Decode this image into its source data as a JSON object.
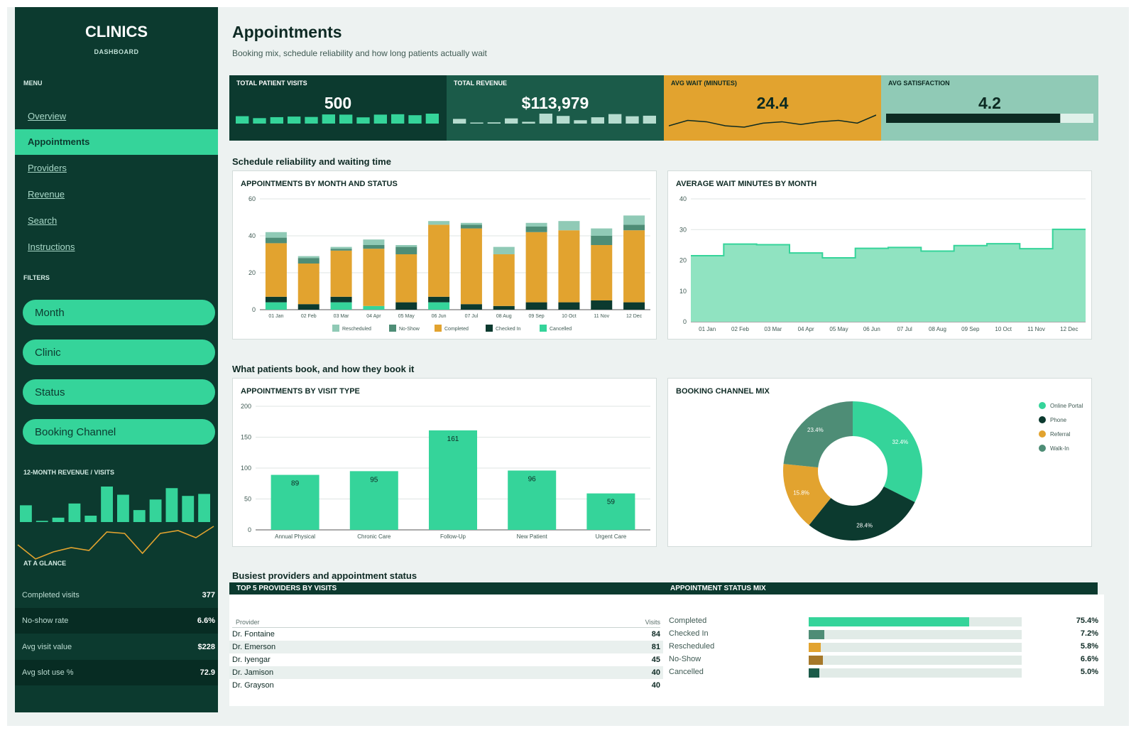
{
  "sidebar": {
    "brand": "CLINICS",
    "brand_sub": "DASHBOARD",
    "menu_label": "MENU",
    "nav": [
      "Overview",
      "Appointments",
      "Providers",
      "Revenue",
      "Search",
      "Instructions"
    ],
    "active_nav": "Appointments",
    "filters_label": "FILTERS",
    "filters": [
      "Month",
      "Clinic",
      "Status",
      "Booking Channel"
    ],
    "trend_label": "12-MONTH REVENUE  /  VISITS",
    "revenue_trend": [
      8.4,
      0.6,
      2.2,
      9.3,
      3.2,
      17.8,
      13.7,
      6.0,
      11.3,
      17.0,
      13.1,
      14.1
    ],
    "visits_trend": [
      38,
      28,
      33,
      36,
      34,
      47,
      46,
      32,
      46,
      48,
      43,
      51
    ],
    "glance_label": "AT A GLANCE",
    "glance": [
      {
        "label": "Completed visits",
        "value": "377"
      },
      {
        "label": "No-show rate",
        "value": "6.6%"
      },
      {
        "label": "Avg visit value",
        "value": "$228"
      },
      {
        "label": "Avg slot use %",
        "value": "72.9"
      }
    ]
  },
  "header": {
    "title": "Appointments",
    "subtitle": "Booking mix, schedule reliability and how long patients actually wait"
  },
  "kpis": [
    {
      "title": "TOTAL PATIENT VISITS",
      "value": "500",
      "bg": "#0c3a2f",
      "fg": "#ffffff",
      "spark": "bars",
      "spark_color": "#35d49a",
      "spark_values": [
        38,
        28,
        33,
        36,
        34,
        47,
        46,
        32,
        46,
        48,
        43,
        51
      ]
    },
    {
      "title": "TOTAL REVENUE",
      "value": "$113,979",
      "bg": "#1b5b49",
      "fg": "#ffffff",
      "spark": "bars",
      "spark_color": "#b6dccf",
      "spark_values": [
        8.4,
        0.6,
        2.2,
        9.3,
        3.2,
        17.8,
        13.7,
        6.0,
        11.3,
        17.0,
        13.1,
        14.1
      ]
    },
    {
      "title": "AVG WAIT (MINUTES)",
      "value": "24.4",
      "bg": "#e2a32f",
      "fg": "#0c2a22",
      "spark": "line",
      "spark_color": "#0c2a22",
      "spark_values": [
        22,
        26,
        25,
        22,
        21,
        24,
        25,
        23,
        25,
        26,
        24,
        30
      ]
    },
    {
      "title": "AVG SATISFACTION",
      "value": "4.2",
      "bg": "#90cab6",
      "fg": "#0c2a22",
      "spark": "progress",
      "progress": 0.84
    }
  ],
  "sections": {
    "s1": "Schedule reliability and waiting time",
    "s2": "What patients book, and how they book it",
    "s3": "Busiest providers and appointment status"
  },
  "chart_data": [
    {
      "title": "APPOINTMENTS BY MONTH AND STATUS",
      "type": "bar",
      "stacked": true,
      "categories": [
        "01 Jan",
        "02 Feb",
        "03 Mar",
        "04 Apr",
        "05 May",
        "06 Jun",
        "07 Jul",
        "08 Aug",
        "09 Sep",
        "10 Oct",
        "11 Nov",
        "12 Dec"
      ],
      "series": [
        {
          "name": "Cancelled",
          "color": "#35d49a",
          "values": [
            4,
            0,
            4,
            2,
            0,
            4,
            0,
            0,
            0,
            0,
            0,
            0
          ]
        },
        {
          "name": "Checked In",
          "color": "#0c3a2f",
          "values": [
            3,
            3,
            3,
            0,
            4,
            3,
            3,
            2,
            4,
            4,
            5,
            4
          ]
        },
        {
          "name": "Completed",
          "color": "#e2a32f",
          "values": [
            29,
            22,
            25,
            31,
            26,
            39,
            41,
            28,
            38,
            39,
            30,
            39
          ]
        },
        {
          "name": "No-Show",
          "color": "#4e8d76",
          "values": [
            3,
            3,
            1,
            2,
            4,
            0,
            2,
            0,
            3,
            0,
            5,
            3
          ]
        },
        {
          "name": "Rescheduled",
          "color": "#90cab6",
          "values": [
            3,
            1,
            1,
            3,
            1,
            2,
            1,
            4,
            2,
            5,
            4,
            5
          ]
        }
      ],
      "legend_order": [
        "Rescheduled",
        "No-Show",
        "Completed",
        "Checked In",
        "Cancelled"
      ],
      "ylim": [
        0,
        60
      ],
      "yticks": [
        0,
        20,
        40,
        60
      ],
      "grid": true,
      "legend": "bottom"
    },
    {
      "title": "AVERAGE WAIT MINUTES BY MONTH",
      "type": "area",
      "categories": [
        "01 Jan",
        "02 Feb",
        "03 Mar",
        "04 Apr",
        "05 May",
        "06 Jun",
        "07 Jul",
        "08 Aug",
        "09 Sep",
        "10 Oct",
        "11 Nov",
        "12 Dec"
      ],
      "values": [
        21.5,
        25.3,
        25.1,
        22.4,
        20.8,
        23.9,
        24.2,
        23.0,
        24.8,
        25.4,
        23.8,
        30.1
      ],
      "ylim": [
        0,
        40
      ],
      "yticks": [
        0,
        10,
        20,
        30,
        40
      ],
      "grid": true,
      "fill": "#90e3c1",
      "stroke": "#35d49a"
    },
    {
      "title": "APPOINTMENTS BY VISIT TYPE",
      "type": "bar",
      "categories": [
        "Annual Physical",
        "Chronic Care",
        "Follow-Up",
        "New Patient",
        "Urgent Care"
      ],
      "values": [
        89,
        95,
        161,
        96,
        59
      ],
      "ylim": [
        0,
        200
      ],
      "yticks": [
        0,
        50,
        100,
        150,
        200
      ],
      "grid": true,
      "color": "#35d49a"
    },
    {
      "title": "BOOKING CHANNEL MIX",
      "type": "pie",
      "donut": true,
      "labels": [
        "Online Portal",
        "Phone",
        "Referral",
        "Walk-In"
      ],
      "values": [
        32.4,
        28.4,
        15.8,
        23.4
      ],
      "colors": [
        "#35d49a",
        "#0c3a2f",
        "#e2a32f",
        "#4e8d76"
      ],
      "legend": "top-right"
    }
  ],
  "providers": {
    "title": "TOP 5 PROVIDERS BY VISITS",
    "col_provider": "Provider",
    "col_visits": "Visits",
    "rows": [
      {
        "name": "Dr. Fontaine",
        "visits": "84"
      },
      {
        "name": "Dr. Emerson",
        "visits": "81"
      },
      {
        "name": "Dr. Iyengar",
        "visits": "45"
      },
      {
        "name": "Dr. Jamison",
        "visits": "40"
      },
      {
        "name": "Dr. Grayson",
        "visits": "40"
      }
    ]
  },
  "status_mix": {
    "title": "APPOINTMENT STATUS MIX",
    "rows": [
      {
        "label": "Completed",
        "pct": "75.4%",
        "value": 0.754,
        "color": "#35d49a"
      },
      {
        "label": "Checked In",
        "pct": "7.2%",
        "value": 0.072,
        "color": "#4e8d76"
      },
      {
        "label": "Rescheduled",
        "pct": "5.8%",
        "value": 0.058,
        "color": "#e2a32f"
      },
      {
        "label": "No-Show",
        "pct": "6.6%",
        "value": 0.066,
        "color": "#a6782a"
      },
      {
        "label": "Cancelled",
        "pct": "5.0%",
        "value": 0.05,
        "color": "#1b5b49"
      }
    ]
  }
}
